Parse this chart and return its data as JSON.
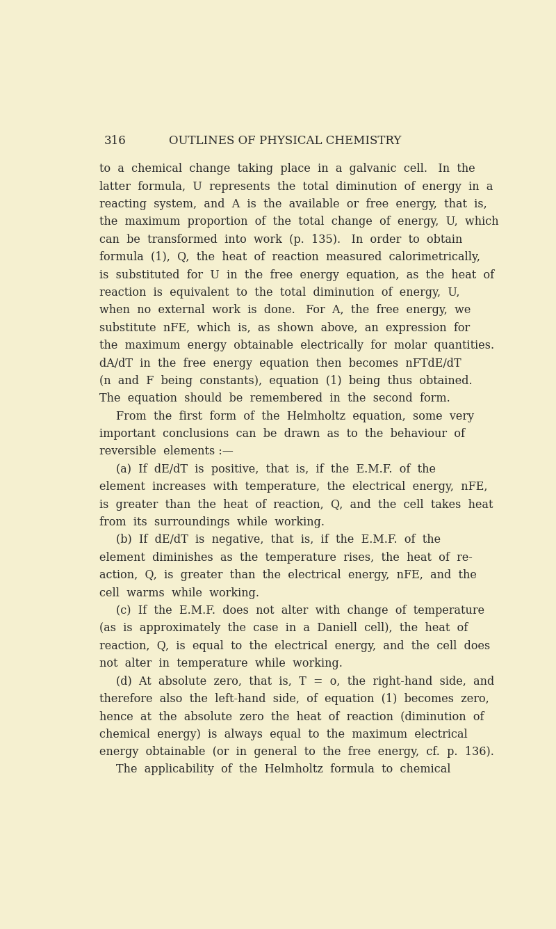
{
  "background_color": "#f5f0d0",
  "text_color": "#2a2a2a",
  "page_number": "316",
  "header": "OUTLINES OF PHYSICAL CHEMISTRY",
  "font_size": 11.5,
  "header_font_size": 12,
  "lines": [
    {
      "text": "to  a  chemical  change  taking  place  in  a  galvanic  cell.   In  the",
      "indent": 0
    },
    {
      "text": "latter  formula,  U  represents  the  total  diminution  of  energy  in  a",
      "indent": 0
    },
    {
      "text": "reacting  system,  and  A  is  the  available  or  free  energy,  that  is,",
      "indent": 0
    },
    {
      "text": "the  maximum  proportion  of  the  total  change  of  energy,  U,  which",
      "indent": 0
    },
    {
      "text": "can  be  transformed  into  work  (p.  135).   In  order  to  obtain",
      "indent": 0
    },
    {
      "text": "formula  (1),  Q,  the  heat  of  reaction  measured  calorimetrically,",
      "indent": 0
    },
    {
      "text": "is  substituted  for  U  in  the  free  energy  equation,  as  the  heat  of",
      "indent": 0
    },
    {
      "text": "reaction  is  equivalent  to  the  total  diminution  of  energy,  U,",
      "indent": 0
    },
    {
      "text": "when  no  external  work  is  done.   For  A,  the  free  energy,  we",
      "indent": 0
    },
    {
      "text": "substitute  nFE,  which  is,  as  shown  above,  an  expression  for",
      "indent": 0
    },
    {
      "text": "the  maximum  energy  obtainable  electrically  for  molar  quantities.",
      "indent": 0
    },
    {
      "text": "dA/dT  in  the  free  energy  equation  then  becomes  nFTdE/dT",
      "indent": 0
    },
    {
      "text": "(n  and  F  being  constants),  equation  (1)  being  thus  obtained.",
      "indent": 0
    },
    {
      "text": "The  equation  should  be  remembered  in  the  second  form.",
      "indent": 0
    },
    {
      "text": "From  the  first  form  of  the  Helmholtz  equation,  some  very",
      "indent": 1
    },
    {
      "text": "important  conclusions  can  be  drawn  as  to  the  behaviour  of",
      "indent": 0
    },
    {
      "text": "reversible  elements :—",
      "indent": 0
    },
    {
      "text": "(a)  If  dE/dT  is  positive,  that  is,  if  the  E.M.F.  of  the",
      "indent": 1
    },
    {
      "text": "element  increases  with  temperature,  the  electrical  energy,  nFE,",
      "indent": 0
    },
    {
      "text": "is  greater  than  the  heat  of  reaction,  Q,  and  the  cell  takes  heat",
      "indent": 0
    },
    {
      "text": "from  its  surroundings  while  working.",
      "indent": 0
    },
    {
      "text": "(b)  If  dE/dT  is  negative,  that  is,  if  the  E.M.F.  of  the",
      "indent": 1
    },
    {
      "text": "element  diminishes  as  the  temperature  rises,  the  heat  of  re-",
      "indent": 0
    },
    {
      "text": "action,  Q,  is  greater  than  the  electrical  energy,  nFE,  and  the",
      "indent": 0
    },
    {
      "text": "cell  warms  while  working.",
      "indent": 0
    },
    {
      "text": "(c)  If  the  E.M.F.  does  not  alter  with  change  of  temperature",
      "indent": 1
    },
    {
      "text": "(as  is  approximately  the  case  in  a  Daniell  cell),  the  heat  of",
      "indent": 0
    },
    {
      "text": "reaction,  Q,  is  equal  to  the  electrical  energy,  and  the  cell  does",
      "indent": 0
    },
    {
      "text": "not  alter  in  temperature  while  working.",
      "indent": 0
    },
    {
      "text": "(d)  At  absolute  zero,  that  is,  T  =  o,  the  right-hand  side,  and",
      "indent": 1
    },
    {
      "text": "therefore  also  the  left-hand  side,  of  equation  (1)  becomes  zero,",
      "indent": 0
    },
    {
      "text": "hence  at  the  absolute  zero  the  heat  of  reaction  (diminution  of",
      "indent": 0
    },
    {
      "text": "chemical  energy)  is  always  equal  to  the  maximum  electrical",
      "indent": 0
    },
    {
      "text": "energy  obtainable  (or  in  general  to  the  free  energy,  cf.  p.  136).",
      "indent": 0
    },
    {
      "text": "The  applicability  of  the  Helmholtz  formula  to  chemical",
      "indent": 1
    }
  ]
}
